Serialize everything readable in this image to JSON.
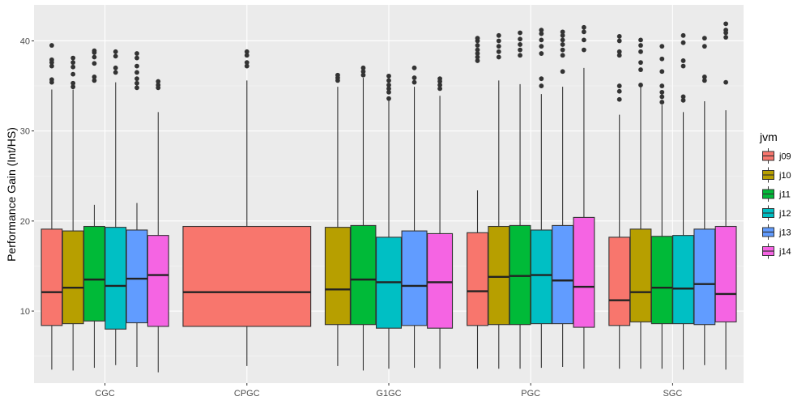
{
  "chart_data": {
    "type": "boxplot",
    "title": "",
    "xlabel": "",
    "ylabel": "Performance Gain (Int/HS)",
    "ylim": [
      2,
      44
    ],
    "yticks": [
      10,
      20,
      30,
      40
    ],
    "grid": true,
    "legend": {
      "title": "jvm",
      "position": "right"
    },
    "categories": [
      "CGC",
      "CPGC",
      "G1GC",
      "PGC",
      "SGC"
    ],
    "series": [
      {
        "name": "j09",
        "color": "#F8766D"
      },
      {
        "name": "j10",
        "color": "#B79F00"
      },
      {
        "name": "j11",
        "color": "#00BA38"
      },
      {
        "name": "j12",
        "color": "#00BFC4"
      },
      {
        "name": "j13",
        "color": "#619CFF"
      },
      {
        "name": "j14",
        "color": "#F564E3"
      }
    ],
    "boxes": [
      {
        "category": "CGC",
        "series": "j09",
        "min": 3.5,
        "q1": 8.4,
        "median": 12.1,
        "q3": 19.1,
        "max": 34.6,
        "outliers": [
          35.4,
          35.7,
          37.2,
          37.6,
          37.9,
          39.5
        ]
      },
      {
        "category": "CGC",
        "series": "j10",
        "min": 3.4,
        "q1": 8.6,
        "median": 12.6,
        "q3": 18.9,
        "max": 34.6,
        "outliers": [
          34.9,
          35.3,
          36.3,
          37.1,
          37.6,
          38.1
        ]
      },
      {
        "category": "CGC",
        "series": "j11",
        "min": 3.7,
        "q1": 8.9,
        "median": 13.5,
        "q3": 19.4,
        "max": 21.8,
        "outliers": [
          35.6,
          36.0,
          37.5,
          38.2,
          38.7,
          38.9
        ]
      },
      {
        "category": "CGC",
        "series": "j12",
        "min": 4.0,
        "q1": 8.0,
        "median": 12.8,
        "q3": 19.3,
        "max": 35.4,
        "outliers": [
          36.5,
          37.0,
          38.3,
          38.8
        ]
      },
      {
        "category": "CGC",
        "series": "j13",
        "min": 3.8,
        "q1": 8.7,
        "median": 13.6,
        "q3": 19.0,
        "max": 22.0,
        "outliers": [
          34.8,
          35.3,
          35.8,
          36.5,
          37.2,
          38.1,
          38.6
        ]
      },
      {
        "category": "CGC",
        "series": "j14",
        "min": 3.2,
        "q1": 8.3,
        "median": 14.0,
        "q3": 18.4,
        "max": 32.1,
        "outliers": [
          34.8,
          35.1,
          35.5
        ]
      },
      {
        "category": "CPGC",
        "series": "j09",
        "min": 3.9,
        "q1": 8.3,
        "median": 12.1,
        "q3": 19.4,
        "max": 35.6,
        "outliers": [
          37.2,
          37.6,
          38.4,
          38.8
        ]
      },
      {
        "category": "G1GC",
        "series": "j10",
        "min": 3.9,
        "q1": 8.5,
        "median": 12.4,
        "q3": 19.3,
        "max": 34.9,
        "outliers": [
          35.6,
          35.9,
          36.2
        ]
      },
      {
        "category": "G1GC",
        "series": "j11",
        "min": 3.4,
        "q1": 8.5,
        "median": 13.5,
        "q3": 19.5,
        "max": 35.9,
        "outliers": [
          36.2,
          36.6,
          37.0
        ]
      },
      {
        "category": "G1GC",
        "series": "j12",
        "min": 3.6,
        "q1": 8.1,
        "median": 13.2,
        "q3": 18.2,
        "max": 33.4,
        "outliers": [
          33.6,
          34.3,
          34.7,
          35.1,
          35.6,
          36.1
        ]
      },
      {
        "category": "G1GC",
        "series": "j13",
        "min": 3.7,
        "q1": 8.4,
        "median": 12.8,
        "q3": 18.9,
        "max": 34.9,
        "outliers": [
          35.4,
          35.9,
          37.0
        ]
      },
      {
        "category": "G1GC",
        "series": "j14",
        "min": 3.6,
        "q1": 8.1,
        "median": 13.2,
        "q3": 18.6,
        "max": 33.9,
        "outliers": [
          34.7,
          35.1,
          35.5,
          35.8
        ]
      },
      {
        "category": "PGC",
        "series": "j09",
        "min": 3.6,
        "q1": 8.4,
        "median": 12.2,
        "q3": 18.7,
        "max": 23.4,
        "outliers": [
          37.8,
          38.2,
          38.6,
          39.0,
          39.5,
          40.0,
          40.3
        ]
      },
      {
        "category": "PGC",
        "series": "j10",
        "min": 3.6,
        "q1": 8.5,
        "median": 13.8,
        "q3": 19.4,
        "max": 35.6,
        "outliers": [
          38.2,
          38.8,
          39.4,
          40.0,
          40.6
        ]
      },
      {
        "category": "PGC",
        "series": "j11",
        "min": 3.6,
        "q1": 8.5,
        "median": 13.9,
        "q3": 19.5,
        "max": 35.2,
        "outliers": [
          38.4,
          39.0,
          39.6,
          40.2,
          40.9
        ]
      },
      {
        "category": "PGC",
        "series": "j12",
        "min": 3.7,
        "q1": 8.6,
        "median": 14.0,
        "q3": 19.0,
        "max": 34.1,
        "outliers": [
          35.0,
          35.8,
          38.6,
          39.4,
          40.1,
          40.8,
          41.2
        ]
      },
      {
        "category": "PGC",
        "series": "j13",
        "min": 3.8,
        "q1": 8.6,
        "median": 13.4,
        "q3": 19.5,
        "max": 34.9,
        "outliers": [
          36.6,
          38.4,
          39.0,
          39.6,
          40.1,
          40.6,
          41.0
        ]
      },
      {
        "category": "PGC",
        "series": "j14",
        "min": 3.6,
        "q1": 8.2,
        "median": 12.7,
        "q3": 20.4,
        "max": 37.0,
        "outliers": [
          39.0,
          40.1,
          41.0,
          41.5
        ]
      },
      {
        "category": "SGC",
        "series": "j09",
        "min": 3.6,
        "q1": 8.4,
        "median": 11.2,
        "q3": 18.2,
        "max": 31.8,
        "outliers": [
          33.5,
          34.4,
          35.0,
          38.4,
          38.8,
          40.0,
          40.5
        ]
      },
      {
        "category": "SGC",
        "series": "j10",
        "min": 3.6,
        "q1": 8.8,
        "median": 12.1,
        "q3": 19.1,
        "max": 34.9,
        "outliers": [
          35.1,
          36.8,
          37.6,
          38.8,
          39.5,
          40.1
        ]
      },
      {
        "category": "SGC",
        "series": "j11",
        "min": 3.6,
        "q1": 8.6,
        "median": 12.6,
        "q3": 18.3,
        "max": 32.9,
        "outliers": [
          33.2,
          33.8,
          34.3,
          35.0,
          36.6,
          38.0,
          39.4
        ]
      },
      {
        "category": "SGC",
        "series": "j12",
        "min": 3.5,
        "q1": 8.6,
        "median": 12.5,
        "q3": 18.4,
        "max": 32.1,
        "outliers": [
          33.4,
          33.8,
          37.2,
          37.8,
          39.8,
          40.6
        ]
      },
      {
        "category": "SGC",
        "series": "j13",
        "min": 4.0,
        "q1": 8.5,
        "median": 13.0,
        "q3": 19.1,
        "max": 33.3,
        "outliers": [
          35.6,
          36.0,
          39.4,
          40.3
        ]
      },
      {
        "category": "SGC",
        "series": "j14",
        "min": 3.5,
        "q1": 8.8,
        "median": 11.9,
        "q3": 19.4,
        "max": 32.3,
        "outliers": [
          35.4,
          40.4,
          40.9,
          41.2,
          41.9
        ]
      }
    ]
  }
}
